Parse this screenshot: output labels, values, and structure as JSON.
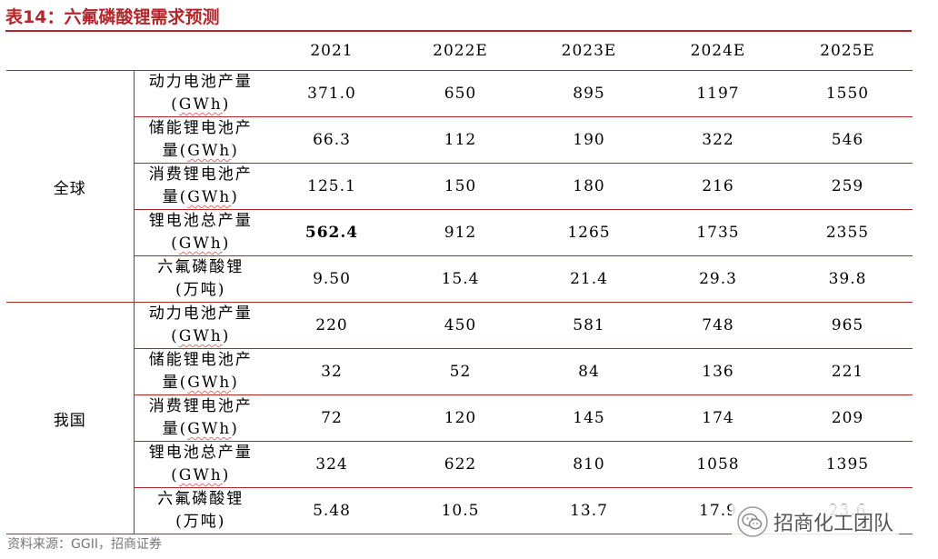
{
  "title": "表14：六氟磷酸锂需求预测",
  "header": {
    "years": [
      "2021",
      "2022E",
      "2023E",
      "2024E",
      "2025E"
    ]
  },
  "groups": [
    {
      "region": "全球",
      "rows": [
        {
          "label": "动力电池产量",
          "unit": "GWh",
          "values": [
            "371.0",
            "650",
            "895",
            "1197",
            "1550"
          ]
        },
        {
          "label": "储能锂电池产",
          "label2": "量",
          "unit": "GWh",
          "values": [
            "66.3",
            "112",
            "190",
            "322",
            "546"
          ]
        },
        {
          "label": "消费锂电池产",
          "label2": "量",
          "unit": "GWh",
          "values": [
            "125.1",
            "150",
            "180",
            "216",
            "259"
          ]
        },
        {
          "label": "锂电池总产量",
          "unit": "GWh",
          "values": [
            "562.4",
            "912",
            "1265",
            "1735",
            "2355"
          ]
        },
        {
          "label": "六氟磷酸锂",
          "unit": "万吨",
          "values": [
            "9.50",
            "15.4",
            "21.4",
            "29.3",
            "39.8"
          ]
        }
      ]
    },
    {
      "region": "我国",
      "rows": [
        {
          "label": "动力电池产量",
          "unit": "GWh",
          "values": [
            "220",
            "450",
            "581",
            "748",
            "965"
          ]
        },
        {
          "label": "储能锂电池产",
          "label2": "量",
          "unit": "GWh",
          "values": [
            "32",
            "52",
            "84",
            "136",
            "221"
          ]
        },
        {
          "label": "消费锂电池产",
          "label2": "量",
          "unit": "GWh",
          "values": [
            "72",
            "120",
            "145",
            "174",
            "209"
          ]
        },
        {
          "label": "锂电池总产量",
          "unit": "GWh",
          "values": [
            "324",
            "622",
            "810",
            "1058",
            "1395"
          ]
        },
        {
          "label": "六氟磷酸锂",
          "unit": "万吨",
          "values": [
            "5.48",
            "10.5",
            "13.7",
            "17.9",
            "23.6"
          ]
        }
      ]
    }
  ],
  "source": "资料来源：GGII，招商证券",
  "watermark": "招商化工团队",
  "colors": {
    "accent": "#b4262b",
    "rule_light": "#c0c0c0"
  },
  "icons": {
    "watermark": "wechat-icon"
  }
}
